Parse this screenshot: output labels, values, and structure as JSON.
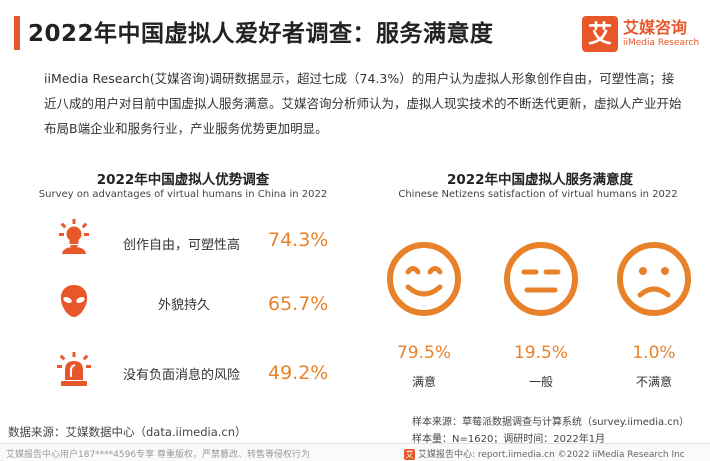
{
  "header": {
    "title": "2022年中国虚拟人爱好者调查：服务满意度",
    "logo_mark": "艾",
    "logo_cn": "艾媒咨询",
    "logo_en": "iiMedia Research",
    "accent_color": "#e8572a"
  },
  "intro": "iiMedia Research(艾媒咨询)调研数据显示，超过七成（74.3%）的用户认为虚拟人形象创作自由，可塑性高；接近八成的用户对目前中国虚拟人服务满意。艾媒咨询分析师认为，虚拟人现实技术的不断迭代更新，虚拟人产业开始布局B端企业和服务行业，产业服务优势更加明显。",
  "chart_data": [
    {
      "type": "table",
      "title": "2022年中国虚拟人优势调查",
      "subtitle": "Survey on advantages of virtual humans in China in 2022",
      "items": [
        {
          "label": "创作自由，可塑性高",
          "value": 74.3,
          "display": "74.3%",
          "icon": "lightbulb-icon"
        },
        {
          "label": "外貌持久",
          "value": 65.7,
          "display": "65.7%",
          "icon": "alien-face-icon"
        },
        {
          "label": "没有负面消息的风险",
          "value": 49.2,
          "display": "49.2%",
          "icon": "alarm-light-icon"
        }
      ],
      "value_color": "#e8822a",
      "icon_color": "#e8572a"
    },
    {
      "type": "table",
      "title": "2022年中国虚拟人服务满意度",
      "subtitle": "Chinese Netizens satisfaction of virtual humans in 2022",
      "items": [
        {
          "label": "满意",
          "value": 79.5,
          "display": "79.5%",
          "icon": "smile-face-icon"
        },
        {
          "label": "一般",
          "value": 19.5,
          "display": "19.5%",
          "icon": "neutral-face-icon"
        },
        {
          "label": "不满意",
          "value": 1.0,
          "display": "1.0%",
          "icon": "sad-face-icon"
        }
      ],
      "value_color": "#e8822a",
      "icon_color": "#e8822a"
    }
  ],
  "notes": {
    "sample_source": "样本来源：草莓派数据调查与计算系统（survey.iimedia.cn）",
    "sample_size": "样本量：N=1620；调研时间：2022年1月"
  },
  "source": "数据来源：艾媒数据中心（data.iimedia.cn）",
  "footer": {
    "left": "艾媒报告中心用户187****4596专享 尊重版权，严禁篡改、转售等侵权行为",
    "right_mark": "艾",
    "right": "艾媒报告中心: report.iimedia.cn   ©2022 iiMedia Research Inc"
  }
}
